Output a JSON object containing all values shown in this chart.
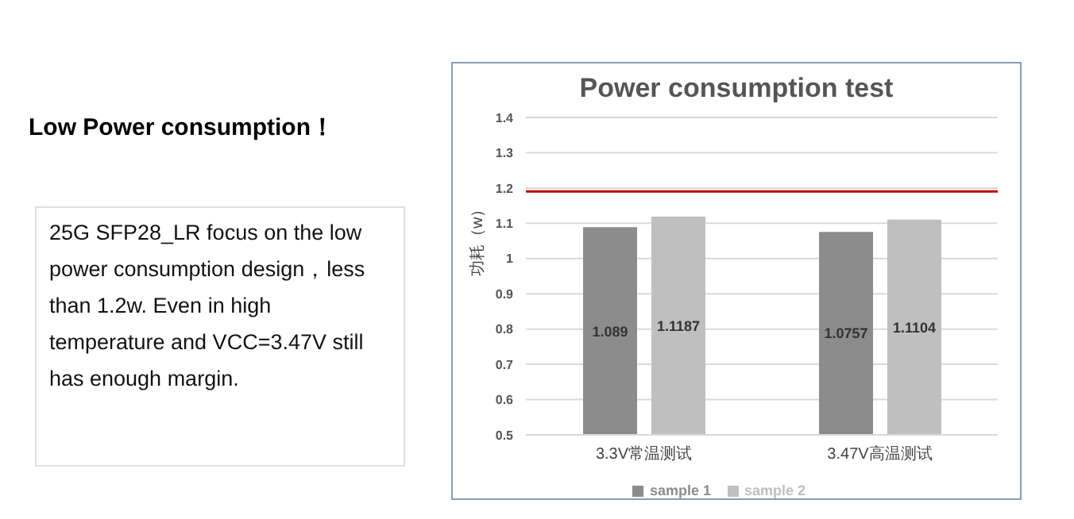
{
  "chart_data": {
    "type": "bar",
    "title": "Power consumption test",
    "ylabel": "功耗（w）",
    "annotations": [
      "Low Power consumption！",
      "25G SFP28_LR focus on the low power consumption design，less than 1.2w.  Even in high temperature and VCC=3.47V still has enough margin."
    ],
    "categories": [
      "3.3V常温测试",
      "3.47V高温测试"
    ],
    "series": [
      {
        "name": "sample 1",
        "color": "#8c8c8c",
        "values": [
          1.089,
          1.0757
        ]
      },
      {
        "name": "sample 2",
        "color": "#bfbfbf",
        "values": [
          1.1187,
          1.1104
        ]
      }
    ],
    "ylim": [
      0.5,
      1.4
    ],
    "yticks": [
      0.5,
      0.6,
      0.7,
      0.8,
      0.9,
      1,
      1.1,
      1.2,
      1.3,
      1.4
    ],
    "ref_lines": [
      {
        "axis": "y",
        "value": 1.19,
        "color": "#c00000"
      }
    ],
    "data_labels": true,
    "grid": "y",
    "legend": "bottom"
  }
}
